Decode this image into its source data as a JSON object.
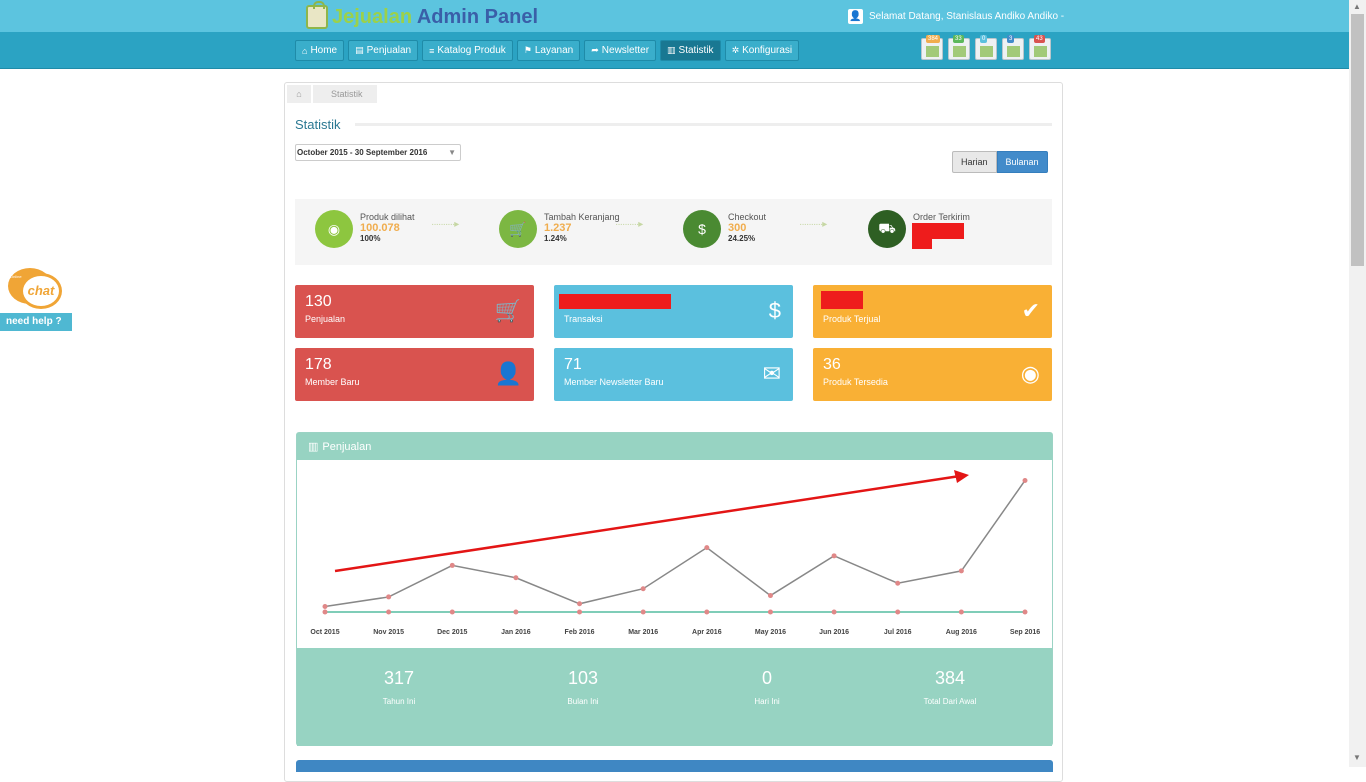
{
  "header": {
    "logo_prefix": "Je",
    "logo_rest": "jualan",
    "logo_suffix": " Admin Panel",
    "welcome": "Selamat Datang, Stanislaus Andiko Andiko -"
  },
  "nav": [
    {
      "label": "Home",
      "icon": "home-icon",
      "glyph": "⌂"
    },
    {
      "label": "Penjualan",
      "icon": "list-alt-icon",
      "glyph": "▤"
    },
    {
      "label": "Katalog Produk",
      "icon": "list-icon",
      "glyph": "≡"
    },
    {
      "label": "Layanan",
      "icon": "bookmark-icon",
      "glyph": "⚑"
    },
    {
      "label": "Newsletter",
      "icon": "share-icon",
      "glyph": "➦"
    },
    {
      "label": "Statistik",
      "icon": "bar-chart-icon",
      "glyph": "▥"
    },
    {
      "label": "Konfigurasi",
      "icon": "gear-icon",
      "glyph": "✲"
    }
  ],
  "notifications": [
    {
      "count": "384",
      "color": "#f0ad4e"
    },
    {
      "count": "33",
      "color": "#5cb85c"
    },
    {
      "count": "0",
      "color": "#5bc0de"
    },
    {
      "count": "3",
      "color": "#428bca"
    },
    {
      "count": "43",
      "color": "#d9534f"
    }
  ],
  "breadcrumb": {
    "current": "Statistik"
  },
  "page": {
    "title": "Statistik",
    "date_range": "October 2015 - 30 September 2016",
    "toggle_harian": "Harian",
    "toggle_bulanan": "Bulanan"
  },
  "funnel": [
    {
      "label": "Produk dilihat",
      "value": "100.078",
      "pct": "100%",
      "color": "#8dc63f",
      "icon": "eye-icon",
      "glyph": "◉"
    },
    {
      "label": "Tambah Keranjang",
      "value": "1.237",
      "pct": "1.24%",
      "color": "#7cb742",
      "icon": "cart-icon",
      "glyph": "🛒"
    },
    {
      "label": "Checkout",
      "value": "300",
      "pct": "24.25%",
      "color": "#4a8a32",
      "icon": "money-icon",
      "glyph": "$"
    },
    {
      "label": "Order Terkirim",
      "value": "",
      "pct": "",
      "color": "#2e5f23",
      "icon": "truck-icon",
      "glyph": "⛟"
    }
  ],
  "tiles": [
    {
      "num": "130",
      "label": "Penjualan",
      "icon": "cart-icon",
      "glyph": "🛒"
    },
    {
      "num": "",
      "label": "Transaksi",
      "icon": "money-icon",
      "glyph": "$"
    },
    {
      "num": "",
      "label": "Produk Terjual",
      "icon": "check-icon",
      "glyph": "✔"
    },
    {
      "num": "178",
      "label": "Member Baru",
      "icon": "add-user-icon",
      "glyph": "👤"
    },
    {
      "num": "71",
      "label": "Member Newsletter Baru",
      "icon": "envelope-icon",
      "glyph": "✉"
    },
    {
      "num": "36",
      "label": "Produk Tersedia",
      "icon": "eye-icon",
      "glyph": "◉"
    }
  ],
  "chart_section": {
    "title": "Penjualan"
  },
  "chart_data": {
    "type": "line",
    "categories": [
      "Oct 2015",
      "Nov 2015",
      "Dec 2015",
      "Jan 2016",
      "Feb 2016",
      "Mar 2016",
      "Apr 2016",
      "May 2016",
      "Jun 2016",
      "Jul 2016",
      "Aug 2016",
      "Sep 2016"
    ],
    "series": [
      {
        "values": [
          4,
          11,
          34,
          25,
          6,
          17,
          47,
          12,
          41,
          21,
          30,
          96
        ],
        "color": "#888888"
      },
      {
        "values": [
          0,
          0,
          0,
          0,
          0,
          0,
          0,
          0,
          0,
          0,
          0,
          0
        ],
        "color": "#7fcdb8"
      }
    ],
    "ylim": [
      0,
      100
    ],
    "grid": false
  },
  "stats": [
    {
      "value": "317",
      "label": "Tahun Ini"
    },
    {
      "value": "103",
      "label": "Bulan Ini"
    },
    {
      "value": "0",
      "label": "Hari Ini"
    },
    {
      "value": "384",
      "label": "Total Dari Awal"
    }
  ],
  "chat": {
    "online": "Online",
    "now": "chat now",
    "help": "need help ?"
  }
}
